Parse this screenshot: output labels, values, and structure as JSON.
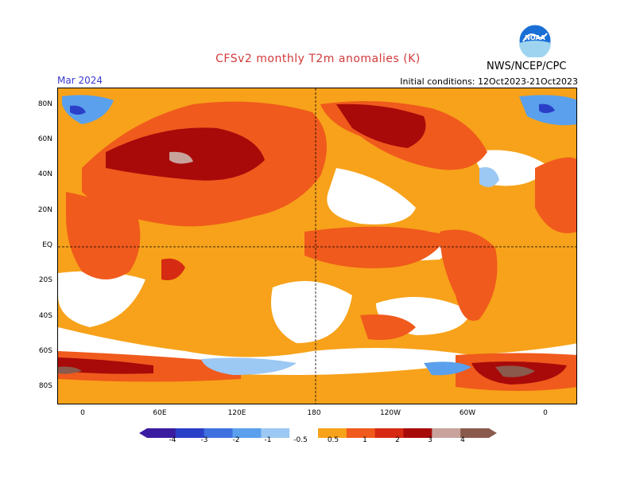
{
  "header": {
    "title": "CFSv2 monthly T2m anomalies (K)",
    "month": "Mar 2024",
    "initial_conditions": "Initial conditions: 12Oct2023-21Oct2023",
    "agency": "NWS/NCEP/CPC",
    "logo_text": "NOAA"
  },
  "axes": {
    "lat_labels": [
      "80N",
      "60N",
      "40N",
      "20N",
      "EQ",
      "20S",
      "40S",
      "60S",
      "80S"
    ],
    "lon_labels": [
      "0",
      "60E",
      "120E",
      "180",
      "120W",
      "60W",
      "0"
    ]
  },
  "colorbar": {
    "labels": [
      "-4",
      "-3",
      "-2",
      "-1",
      "-0.5",
      "0.5",
      "1",
      "2",
      "3",
      "4"
    ],
    "colors": [
      "#3a1ca0",
      "#2a3fc8",
      "#3e70e0",
      "#5aa0ec",
      "#9cc8f4",
      "#ffffff",
      "#f7a21a",
      "#f05a1c",
      "#d62a12",
      "#a80a0a",
      "#c8a39c",
      "#8a5a4c"
    ]
  },
  "palette": {
    "ocean_base": "#f7a21a",
    "neutral": "#ffffff",
    "light_warm": "#f05a1c",
    "warm": "#d62a12",
    "hot": "#a80a0a",
    "very_hot": "#c8a39c",
    "cool": "#9cc8f4",
    "cold": "#5aa0ec",
    "very_cold": "#2a3fc8"
  }
}
